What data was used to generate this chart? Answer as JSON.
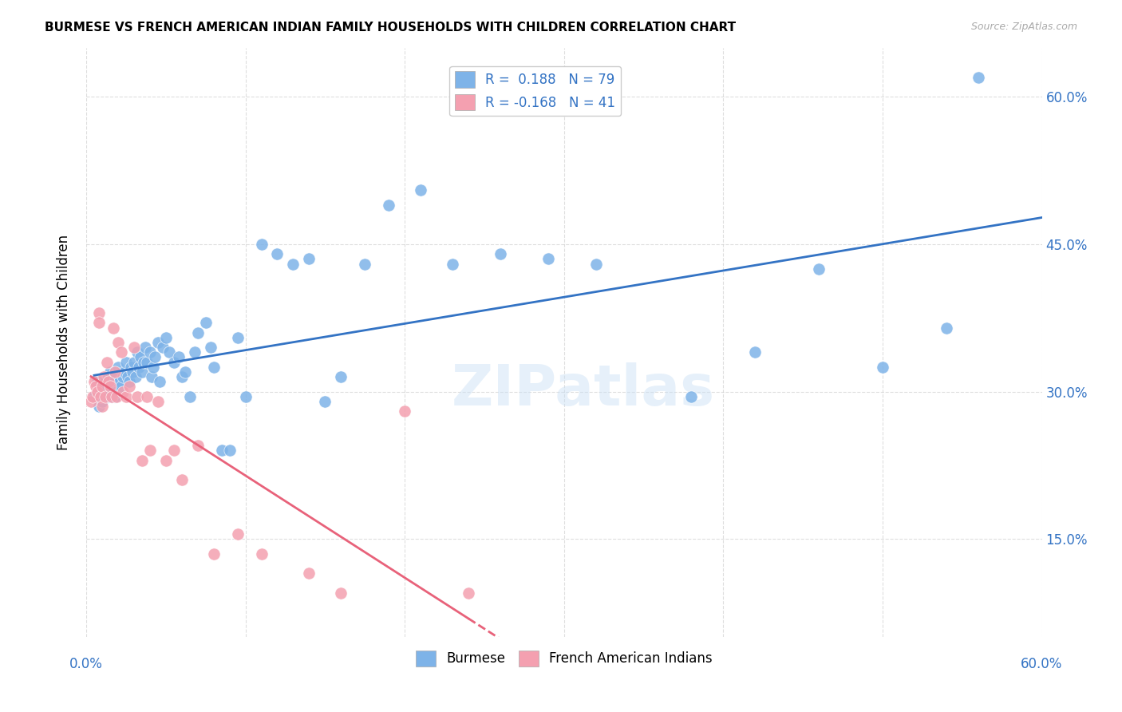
{
  "title": "BURMESE VS FRENCH AMERICAN INDIAN FAMILY HOUSEHOLDS WITH CHILDREN CORRELATION CHART",
  "source": "Source: ZipAtlas.com",
  "ylabel": "Family Households with Children",
  "ytick_labels": [
    "15.0%",
    "30.0%",
    "45.0%",
    "60.0%"
  ],
  "ytick_values": [
    0.15,
    0.3,
    0.45,
    0.6
  ],
  "xlim": [
    0.0,
    0.6
  ],
  "ylim": [
    0.05,
    0.65
  ],
  "legend_r_blue": "R =  0.188",
  "legend_n_blue": "N = 79",
  "legend_r_pink": "R = -0.168",
  "legend_n_pink": "N = 41",
  "blue_color": "#7EB3E8",
  "pink_color": "#F4A0B0",
  "blue_line_color": "#3373C4",
  "pink_line_color": "#E8627A",
  "watermark": "ZIPatlas",
  "burmese_x": [
    0.005,
    0.007,
    0.008,
    0.009,
    0.01,
    0.011,
    0.012,
    0.013,
    0.014,
    0.014,
    0.015,
    0.015,
    0.016,
    0.016,
    0.017,
    0.018,
    0.018,
    0.019,
    0.02,
    0.021,
    0.022,
    0.023,
    0.024,
    0.025,
    0.026,
    0.027,
    0.028,
    0.029,
    0.03,
    0.031,
    0.032,
    0.033,
    0.034,
    0.035,
    0.036,
    0.037,
    0.038,
    0.04,
    0.041,
    0.042,
    0.043,
    0.045,
    0.046,
    0.048,
    0.05,
    0.052,
    0.055,
    0.058,
    0.06,
    0.062,
    0.065,
    0.068,
    0.07,
    0.075,
    0.078,
    0.08,
    0.085,
    0.09,
    0.095,
    0.1,
    0.11,
    0.12,
    0.13,
    0.14,
    0.15,
    0.16,
    0.175,
    0.19,
    0.21,
    0.23,
    0.26,
    0.29,
    0.32,
    0.38,
    0.42,
    0.46,
    0.5,
    0.54,
    0.56
  ],
  "burmese_y": [
    0.295,
    0.31,
    0.285,
    0.3,
    0.29,
    0.295,
    0.3,
    0.305,
    0.295,
    0.315,
    0.3,
    0.32,
    0.295,
    0.31,
    0.305,
    0.295,
    0.315,
    0.3,
    0.325,
    0.31,
    0.305,
    0.315,
    0.32,
    0.33,
    0.315,
    0.31,
    0.325,
    0.32,
    0.33,
    0.315,
    0.34,
    0.325,
    0.335,
    0.32,
    0.33,
    0.345,
    0.33,
    0.34,
    0.315,
    0.325,
    0.335,
    0.35,
    0.31,
    0.345,
    0.355,
    0.34,
    0.33,
    0.335,
    0.315,
    0.32,
    0.295,
    0.34,
    0.36,
    0.37,
    0.345,
    0.325,
    0.24,
    0.24,
    0.355,
    0.295,
    0.45,
    0.44,
    0.43,
    0.435,
    0.29,
    0.315,
    0.43,
    0.49,
    0.505,
    0.43,
    0.44,
    0.435,
    0.43,
    0.295,
    0.34,
    0.425,
    0.325,
    0.365,
    0.62
  ],
  "french_x": [
    0.003,
    0.004,
    0.005,
    0.006,
    0.007,
    0.008,
    0.008,
    0.009,
    0.01,
    0.01,
    0.011,
    0.012,
    0.013,
    0.014,
    0.015,
    0.016,
    0.017,
    0.018,
    0.019,
    0.02,
    0.022,
    0.023,
    0.025,
    0.027,
    0.03,
    0.032,
    0.035,
    0.038,
    0.04,
    0.045,
    0.05,
    0.055,
    0.06,
    0.07,
    0.08,
    0.095,
    0.11,
    0.14,
    0.16,
    0.2,
    0.24
  ],
  "french_y": [
    0.29,
    0.295,
    0.31,
    0.305,
    0.3,
    0.38,
    0.37,
    0.295,
    0.285,
    0.305,
    0.315,
    0.295,
    0.33,
    0.31,
    0.305,
    0.295,
    0.365,
    0.32,
    0.295,
    0.35,
    0.34,
    0.3,
    0.295,
    0.305,
    0.345,
    0.295,
    0.23,
    0.295,
    0.24,
    0.29,
    0.23,
    0.24,
    0.21,
    0.245,
    0.135,
    0.155,
    0.135,
    0.115,
    0.095,
    0.28,
    0.095
  ]
}
